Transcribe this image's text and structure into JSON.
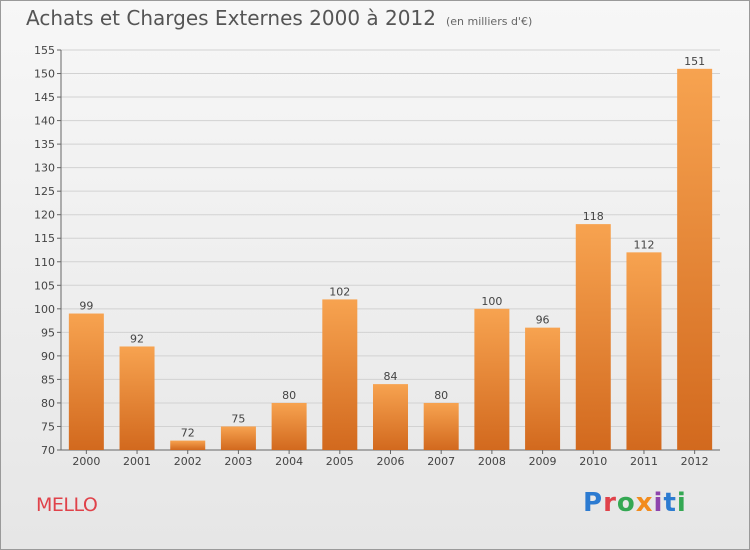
{
  "title": "Achats et Charges Externes 2000 à 2012",
  "unit": "(en milliers d'€)",
  "commune": "MELLO",
  "logo": "Proxiti",
  "colors": {
    "bar_top": "#f7a350",
    "bar_bottom": "#d2691e",
    "logo": [
      "#2c7bd1",
      "#e0424a",
      "#34a853",
      "#f28c1e",
      "#8e44ad",
      "#2c7bd1",
      "#34a853"
    ]
  },
  "chart_data": {
    "type": "bar",
    "categories": [
      "2000",
      "2001",
      "2002",
      "2003",
      "2004",
      "2005",
      "2006",
      "2007",
      "2008",
      "2009",
      "2010",
      "2011",
      "2012"
    ],
    "values": [
      99,
      92,
      72,
      75,
      80,
      102,
      84,
      80,
      100,
      96,
      118,
      112,
      151
    ],
    "ylim": [
      70,
      155
    ],
    "yticks": [
      70,
      75,
      80,
      85,
      90,
      95,
      100,
      105,
      110,
      115,
      120,
      125,
      130,
      135,
      140,
      145,
      150,
      155
    ],
    "grid": true
  }
}
